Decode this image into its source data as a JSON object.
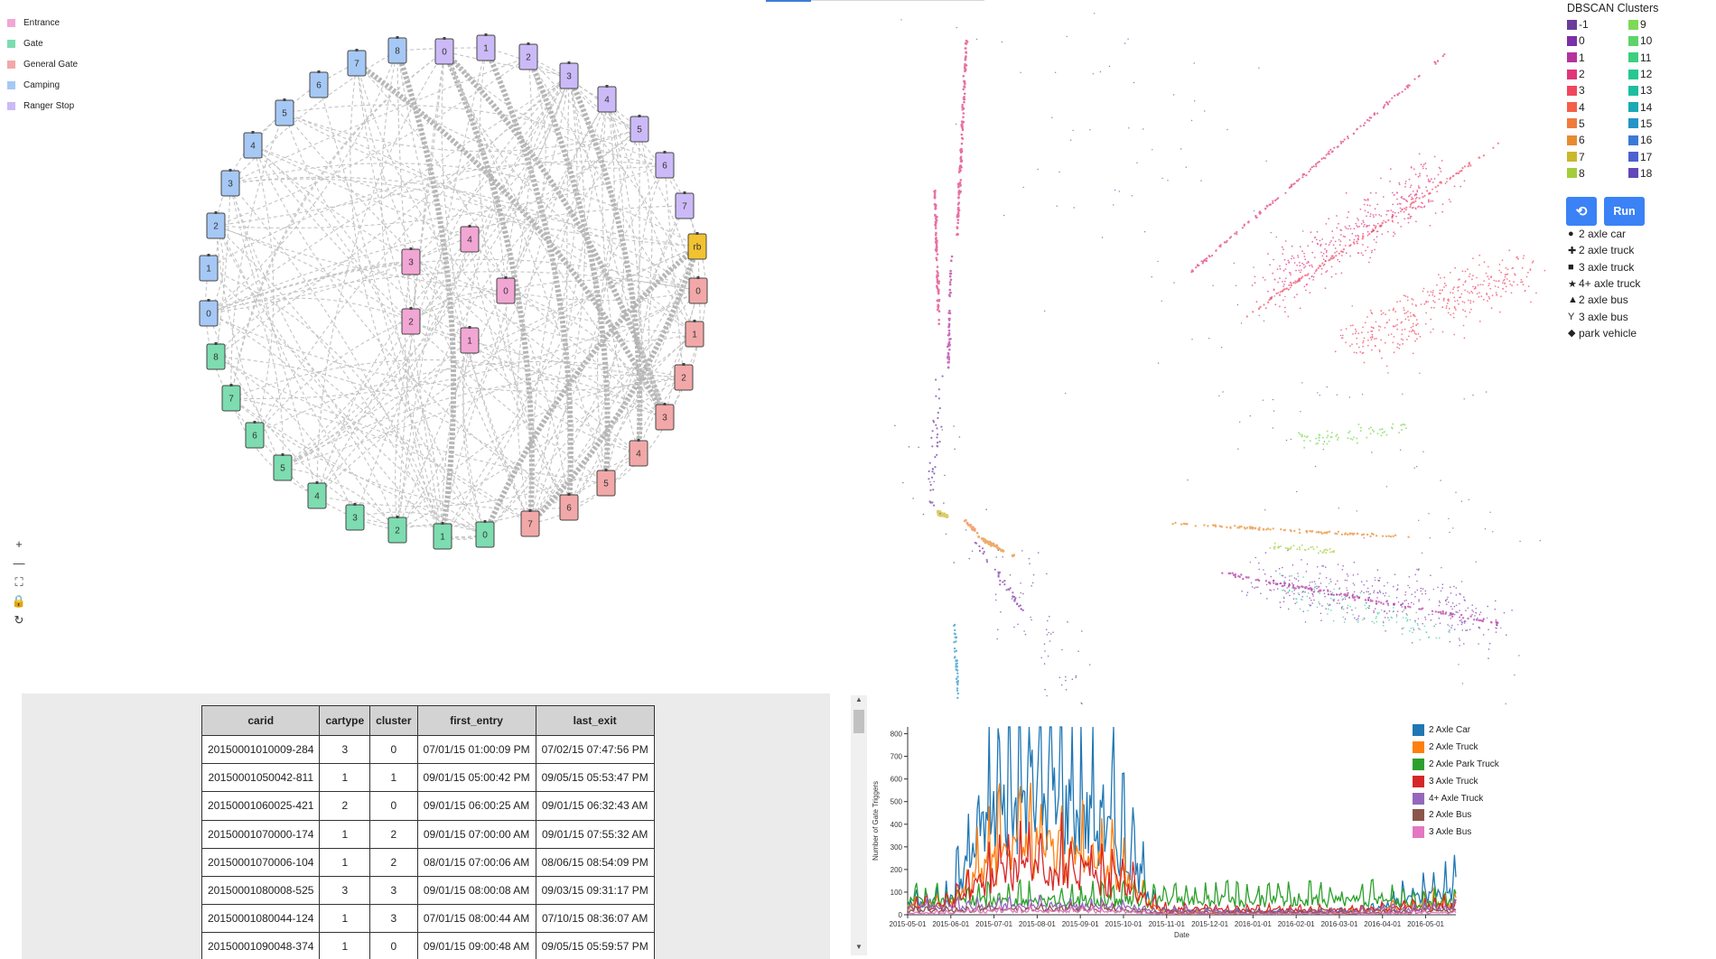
{
  "node_legend": [
    {
      "label": "Entrance",
      "color": "#f2a6d4"
    },
    {
      "label": "Gate",
      "color": "#7ddcb0"
    },
    {
      "label": "General Gate",
      "color": "#f2a8a8"
    },
    {
      "label": "Camping",
      "color": "#a6c8f5"
    },
    {
      "label": "Ranger Stop",
      "color": "#cbbaf7"
    }
  ],
  "graph_nodes": [
    {
      "label": "0",
      "type": "Ranger Stop"
    },
    {
      "label": "1",
      "type": "Ranger Stop"
    },
    {
      "label": "2",
      "type": "Ranger Stop"
    },
    {
      "label": "3",
      "type": "Ranger Stop"
    },
    {
      "label": "4",
      "type": "Ranger Stop"
    },
    {
      "label": "5",
      "type": "Ranger Stop"
    },
    {
      "label": "6",
      "type": "Ranger Stop"
    },
    {
      "label": "7",
      "type": "Ranger Stop"
    },
    {
      "label": "rb",
      "type": "Ranger Base"
    },
    {
      "label": "0",
      "type": "General Gate"
    },
    {
      "label": "1",
      "type": "General Gate"
    },
    {
      "label": "2",
      "type": "General Gate"
    },
    {
      "label": "3",
      "type": "General Gate"
    },
    {
      "label": "4",
      "type": "General Gate"
    },
    {
      "label": "5",
      "type": "General Gate"
    },
    {
      "label": "6",
      "type": "General Gate"
    },
    {
      "label": "7",
      "type": "General Gate"
    },
    {
      "label": "0",
      "type": "Gate"
    },
    {
      "label": "1",
      "type": "Gate"
    },
    {
      "label": "2",
      "type": "Gate"
    },
    {
      "label": "3",
      "type": "Gate"
    },
    {
      "label": "4",
      "type": "Gate"
    },
    {
      "label": "5",
      "type": "Gate"
    },
    {
      "label": "6",
      "type": "Gate"
    },
    {
      "label": "7",
      "type": "Gate"
    },
    {
      "label": "8",
      "type": "Gate"
    },
    {
      "label": "0",
      "type": "Camping"
    },
    {
      "label": "1",
      "type": "Camping"
    },
    {
      "label": "2",
      "type": "Camping"
    },
    {
      "label": "3",
      "type": "Camping"
    },
    {
      "label": "4",
      "type": "Camping"
    },
    {
      "label": "5",
      "type": "Camping"
    },
    {
      "label": "6",
      "type": "Camping"
    },
    {
      "label": "7",
      "type": "Camping"
    },
    {
      "label": "8",
      "type": "Camping"
    },
    {
      "label": "3",
      "type": "Entrance"
    },
    {
      "label": "4",
      "type": "Entrance"
    },
    {
      "label": "0",
      "type": "Entrance"
    },
    {
      "label": "2",
      "type": "Entrance"
    },
    {
      "label": "1",
      "type": "Entrance"
    }
  ],
  "ranger_base_color": "#f2c230",
  "graph_controls": [
    {
      "name": "zoom-in",
      "glyph": "+"
    },
    {
      "name": "zoom-out",
      "glyph": "—"
    },
    {
      "name": "fit",
      "glyph": "⛶"
    },
    {
      "name": "lock",
      "glyph": "🔒"
    },
    {
      "name": "reset",
      "glyph": "↻"
    }
  ],
  "dbscan": {
    "title": "DBSCAN Clusters",
    "clusters": [
      {
        "label": "-1",
        "color": "#6a3d9a"
      },
      {
        "label": "9",
        "color": "#7ed957"
      },
      {
        "label": "0",
        "color": "#7b2fa8"
      },
      {
        "label": "10",
        "color": "#5fd36a"
      },
      {
        "label": "1",
        "color": "#b5329e"
      },
      {
        "label": "11",
        "color": "#3ecf7e"
      },
      {
        "label": "2",
        "color": "#e0367a"
      },
      {
        "label": "12",
        "color": "#26c88f"
      },
      {
        "label": "3",
        "color": "#f0475e"
      },
      {
        "label": "13",
        "color": "#1ebda0"
      },
      {
        "label": "4",
        "color": "#f4604a"
      },
      {
        "label": "14",
        "color": "#1aa9b4"
      },
      {
        "label": "5",
        "color": "#f07b3c"
      },
      {
        "label": "15",
        "color": "#2393c8"
      },
      {
        "label": "6",
        "color": "#e88b30"
      },
      {
        "label": "16",
        "color": "#3a7bd5"
      },
      {
        "label": "7",
        "color": "#cbb82c"
      },
      {
        "label": "17",
        "color": "#4d61d0"
      },
      {
        "label": "8",
        "color": "#a3cd3d"
      },
      {
        "label": "18",
        "color": "#6348b8"
      }
    ]
  },
  "buttons": {
    "reset": "⟲",
    "run": "Run"
  },
  "shape_legend": [
    {
      "glyph": "●",
      "label": "2 axle car"
    },
    {
      "glyph": "✚",
      "label": "2 axle truck"
    },
    {
      "glyph": "■",
      "label": "3 axle truck"
    },
    {
      "glyph": "★",
      "label": "4+ axle truck"
    },
    {
      "glyph": "▲",
      "label": "2 axle bus"
    },
    {
      "glyph": "Y",
      "label": "3 axle bus"
    },
    {
      "glyph": "◆",
      "label": "park vehicle"
    }
  ],
  "table": {
    "columns": [
      "carid",
      "cartype",
      "cluster",
      "first_entry",
      "last_exit"
    ],
    "rows": [
      [
        "20150001010009-284",
        "3",
        "0",
        "07/01/15 01:00:09 PM",
        "07/02/15 07:47:56 PM"
      ],
      [
        "20150001050042-811",
        "1",
        "1",
        "09/01/15 05:00:42 PM",
        "09/05/15 05:53:47 PM"
      ],
      [
        "20150001060025-421",
        "2",
        "0",
        "09/01/15 06:00:25 AM",
        "09/01/15 06:32:43 AM"
      ],
      [
        "20150001070000-174",
        "1",
        "2",
        "09/01/15 07:00:00 AM",
        "09/01/15 07:55:32 AM"
      ],
      [
        "20150001070006-104",
        "1",
        "2",
        "08/01/15 07:00:06 AM",
        "08/06/15 08:54:09 PM"
      ],
      [
        "20150001080008-525",
        "3",
        "3",
        "09/01/15 08:00:08 AM",
        "09/03/15 09:31:17 PM"
      ],
      [
        "20150001080044-124",
        "1",
        "3",
        "07/01/15 08:00:44 AM",
        "07/10/15 08:36:07 AM"
      ],
      [
        "20150001090048-374",
        "1",
        "0",
        "09/01/15 09:00:48 AM",
        "09/05/15 05:59:57 PM"
      ]
    ]
  },
  "chart_data": {
    "type": "line",
    "title": "",
    "xlabel": "Date",
    "ylabel": "Number of Gate Triggers",
    "ylim": [
      0,
      830
    ],
    "yticks": [
      0,
      100,
      200,
      300,
      400,
      500,
      600,
      700,
      800
    ],
    "x_ticks": [
      "2015-05-01",
      "2015-06-01",
      "2015-07-01",
      "2015-08-01",
      "2015-09-01",
      "2015-10-01",
      "2015-11-01",
      "2015-12-01",
      "2016-01-01",
      "2016-02-01",
      "2016-03-01",
      "2016-04-01",
      "2016-05-01"
    ],
    "x_step": "monthly",
    "grid": false,
    "legend_position": "top-right",
    "series": [
      {
        "name": "2 Axle Car",
        "color": "#1f77b4",
        "values": [
          60,
          80,
          560,
          690,
          600,
          420,
          20,
          20,
          15,
          15,
          15,
          30,
          95,
          150
        ]
      },
      {
        "name": "2 Axle Truck",
        "color": "#ff7f0e",
        "values": [
          50,
          60,
          300,
          360,
          330,
          220,
          15,
          15,
          10,
          10,
          10,
          20,
          50,
          70
        ]
      },
      {
        "name": "2 Axle Park Truck",
        "color": "#2ca02c",
        "values": [
          70,
          80,
          80,
          80,
          80,
          80,
          80,
          80,
          80,
          80,
          80,
          80,
          70,
          70
        ]
      },
      {
        "name": "3 Axle Truck",
        "color": "#d62728",
        "values": [
          40,
          50,
          220,
          250,
          230,
          170,
          30,
          30,
          25,
          25,
          25,
          30,
          40,
          50
        ]
      },
      {
        "name": "4+ Axle Truck",
        "color": "#9467bd",
        "values": [
          40,
          40,
          45,
          45,
          45,
          40,
          20,
          20,
          15,
          15,
          15,
          20,
          30,
          35
        ]
      },
      {
        "name": "2 Axle Bus",
        "color": "#8c564b",
        "values": [
          20,
          20,
          30,
          30,
          30,
          25,
          10,
          10,
          10,
          10,
          10,
          10,
          15,
          20
        ]
      },
      {
        "name": "3 Axle Bus",
        "color": "#e377c2",
        "values": [
          10,
          10,
          20,
          20,
          20,
          15,
          5,
          5,
          5,
          5,
          5,
          5,
          10,
          10
        ]
      }
    ]
  }
}
